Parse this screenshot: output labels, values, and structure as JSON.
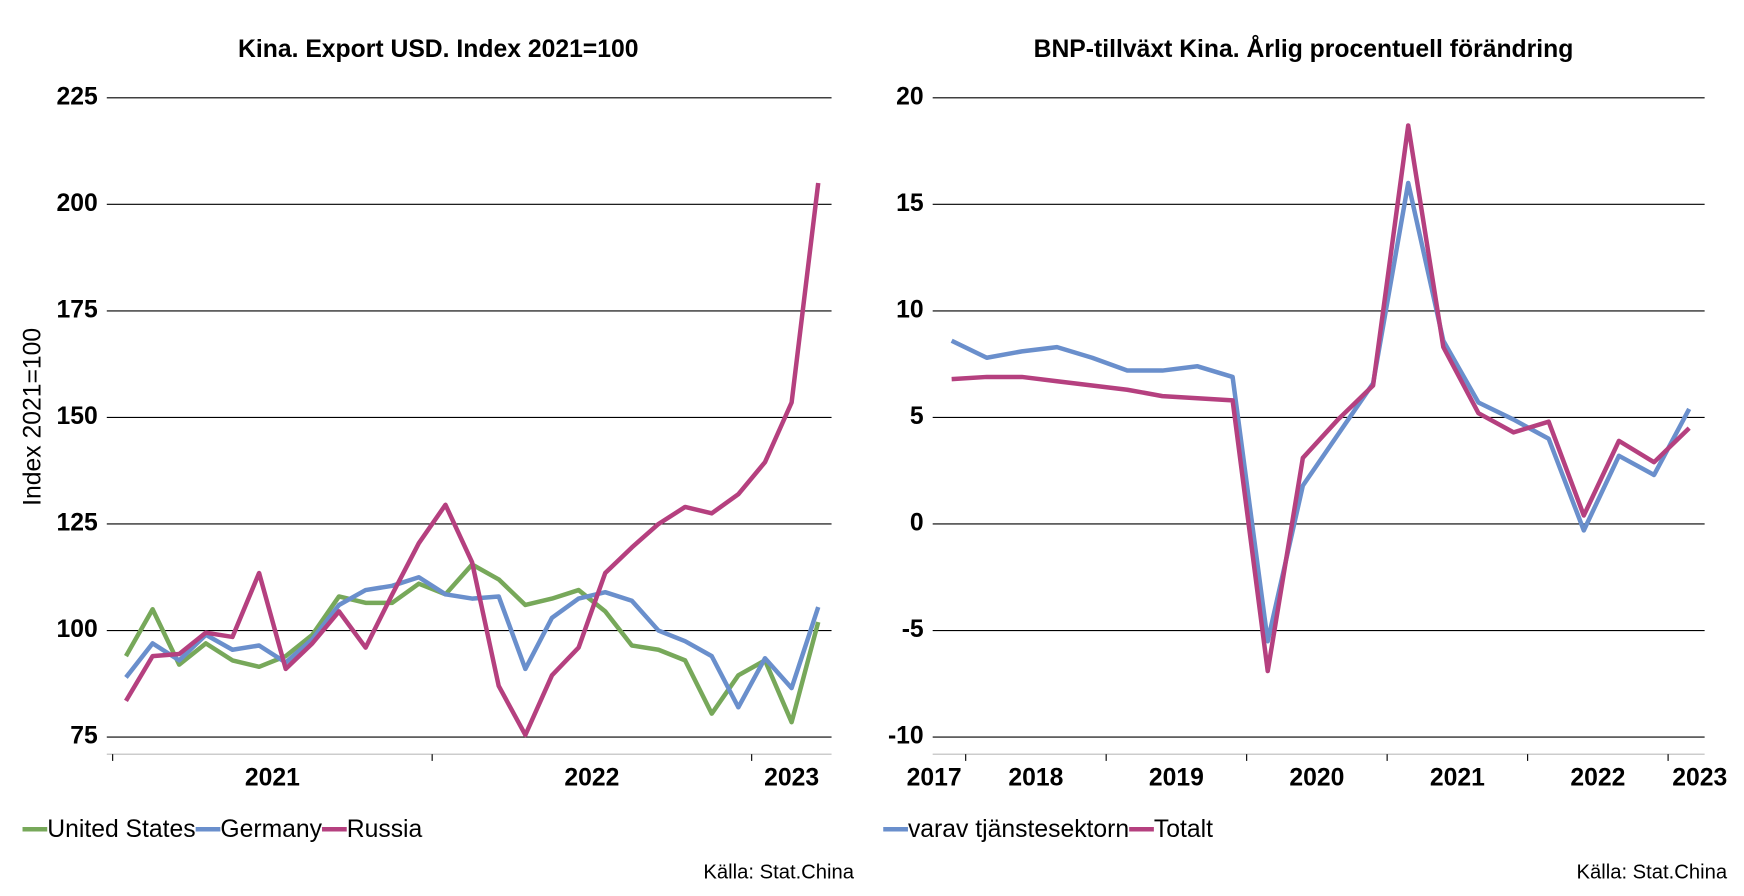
{
  "chart_data": [
    {
      "type": "line",
      "title": "Kina. Export USD. Index 2021=100",
      "ylabel": "Index 2021=100",
      "source": "Källa: Stat.China",
      "categories": [
        null,
        null,
        null,
        null,
        null,
        null,
        null,
        null,
        null,
        null,
        null,
        null,
        null,
        null,
        null,
        null,
        null,
        null,
        null,
        null,
        null,
        null,
        null,
        null,
        null,
        null,
        null
      ],
      "xlim": [
        -0.72,
        26.5
      ],
      "xticks": [
        {
          "value": 5.5,
          "label": "2021"
        },
        {
          "value": 17.5,
          "label": "2022"
        },
        {
          "value": 25,
          "label": "2023"
        }
      ],
      "xtick_marks": [
        -0.5,
        11.5,
        23.5
      ],
      "ylim": [
        71,
        225
      ],
      "yticks": [
        75,
        100,
        125,
        150,
        175,
        200,
        225
      ],
      "grid": true,
      "series": [
        {
          "name": "United States",
          "color": "#77a85a",
          "values": [
            94,
            105,
            92,
            97,
            93,
            91.5,
            94,
            99,
            108,
            106.5,
            106.5,
            111,
            108.5,
            115.5,
            112,
            106,
            107.5,
            109.5,
            104.5,
            96.5,
            95.5,
            93,
            80.5,
            89.5,
            93,
            78.5,
            102
          ]
        },
        {
          "name": "Germany",
          "color": "#6a8fcc",
          "values": [
            89,
            97,
            93,
            99,
            95.5,
            96.5,
            92.5,
            98,
            106,
            109.5,
            110.5,
            112.5,
            108.5,
            107.5,
            108,
            91,
            103,
            107.5,
            109,
            107,
            100,
            97.5,
            94,
            82,
            93.5,
            86.5,
            105.5
          ]
        },
        {
          "name": "Russia",
          "color": "#b5407f",
          "values": [
            83.5,
            94,
            94.5,
            99.5,
            98.5,
            113.5,
            91,
            97,
            104.5,
            96,
            108.5,
            120.5,
            129.5,
            116,
            87,
            75.5,
            89.5,
            96,
            113.5,
            119.5,
            125,
            129,
            127.5,
            132,
            139.5,
            153.5,
            205
          ]
        }
      ]
    },
    {
      "type": "line",
      "title": "BNP-tillväxt Kina. Årlig procentuell förändring",
      "source": "Källa: Stat.China",
      "categories": [
        null,
        null,
        null,
        null,
        null,
        null,
        null,
        null,
        null,
        null,
        null,
        null,
        null,
        null,
        null,
        null,
        null,
        null,
        null,
        null,
        null,
        null
      ],
      "xlim": [
        -0.54,
        21.44
      ],
      "xticks": [
        {
          "value": -0.5,
          "label": "2017"
        },
        {
          "value": 2.4,
          "label": "2018"
        },
        {
          "value": 6.4,
          "label": "2019"
        },
        {
          "value": 10.4,
          "label": "2020"
        },
        {
          "value": 14.4,
          "label": "2021"
        },
        {
          "value": 18.4,
          "label": "2022"
        },
        {
          "value": 21.3,
          "label": "2023"
        }
      ],
      "xtick_marks": [
        0.4,
        4.4,
        8.4,
        12.4,
        16.4,
        20.4
      ],
      "ylim": [
        -10.8,
        20
      ],
      "yticks": [
        -10,
        -5,
        0,
        5,
        10,
        15,
        20
      ],
      "grid": true,
      "series": [
        {
          "name": "varav tjänstesektorn",
          "color": "#6a8fcc",
          "values": [
            8.6,
            7.8,
            8.1,
            8.3,
            7.8,
            7.2,
            7.2,
            7.4,
            6.9,
            -5.5,
            1.8,
            4.2,
            6.6,
            16,
            8.6,
            5.7,
            4.9,
            4.0,
            -0.3,
            3.2,
            2.3,
            5.4
          ]
        },
        {
          "name": "Totalt",
          "color": "#b5407f",
          "values": [
            6.8,
            6.9,
            6.9,
            6.7,
            6.5,
            6.3,
            6.0,
            5.9,
            5.8,
            -6.9,
            3.1,
            4.9,
            6.5,
            18.7,
            8.3,
            5.2,
            4.3,
            4.8,
            0.4,
            3.9,
            2.9,
            4.5
          ]
        }
      ]
    }
  ]
}
